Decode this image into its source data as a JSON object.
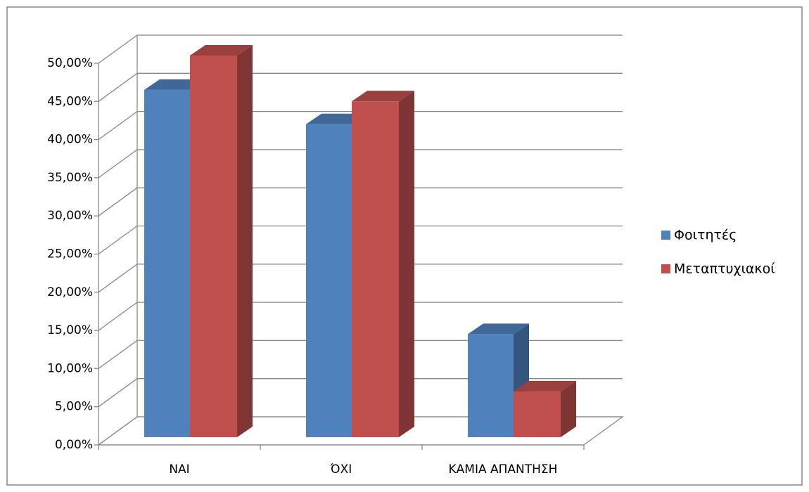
{
  "chart_data": {
    "type": "bar3d",
    "categories": [
      "ΝΑΙ",
      "ΌΧΙ",
      "ΚΑΜΙΑ ΑΠΑΝΤΗΣΗ"
    ],
    "series": [
      {
        "name": "Φοιτητές",
        "color": "#4f81bd",
        "values": [
          45.5,
          41,
          13.5
        ]
      },
      {
        "name": "Μεταπτυχιακοί",
        "color": "#c0504d",
        "values": [
          50,
          44,
          6
        ]
      }
    ],
    "ylim": [
      0,
      50
    ],
    "yticks": [
      {
        "value": 0,
        "label": "0,00%"
      },
      {
        "value": 5,
        "label": "5,00%"
      },
      {
        "value": 10,
        "label": "10,00%"
      },
      {
        "value": 15,
        "label": "15,00%"
      },
      {
        "value": 20,
        "label": "20,00%"
      },
      {
        "value": 25,
        "label": "25,00%"
      },
      {
        "value": 30,
        "label": "30,00%"
      },
      {
        "value": 35,
        "label": "35,00%"
      },
      {
        "value": 40,
        "label": "40,00%"
      },
      {
        "value": 45,
        "label": "45,00%"
      },
      {
        "value": 50,
        "label": "50,00%"
      }
    ],
    "grid": true,
    "legend": "right"
  }
}
